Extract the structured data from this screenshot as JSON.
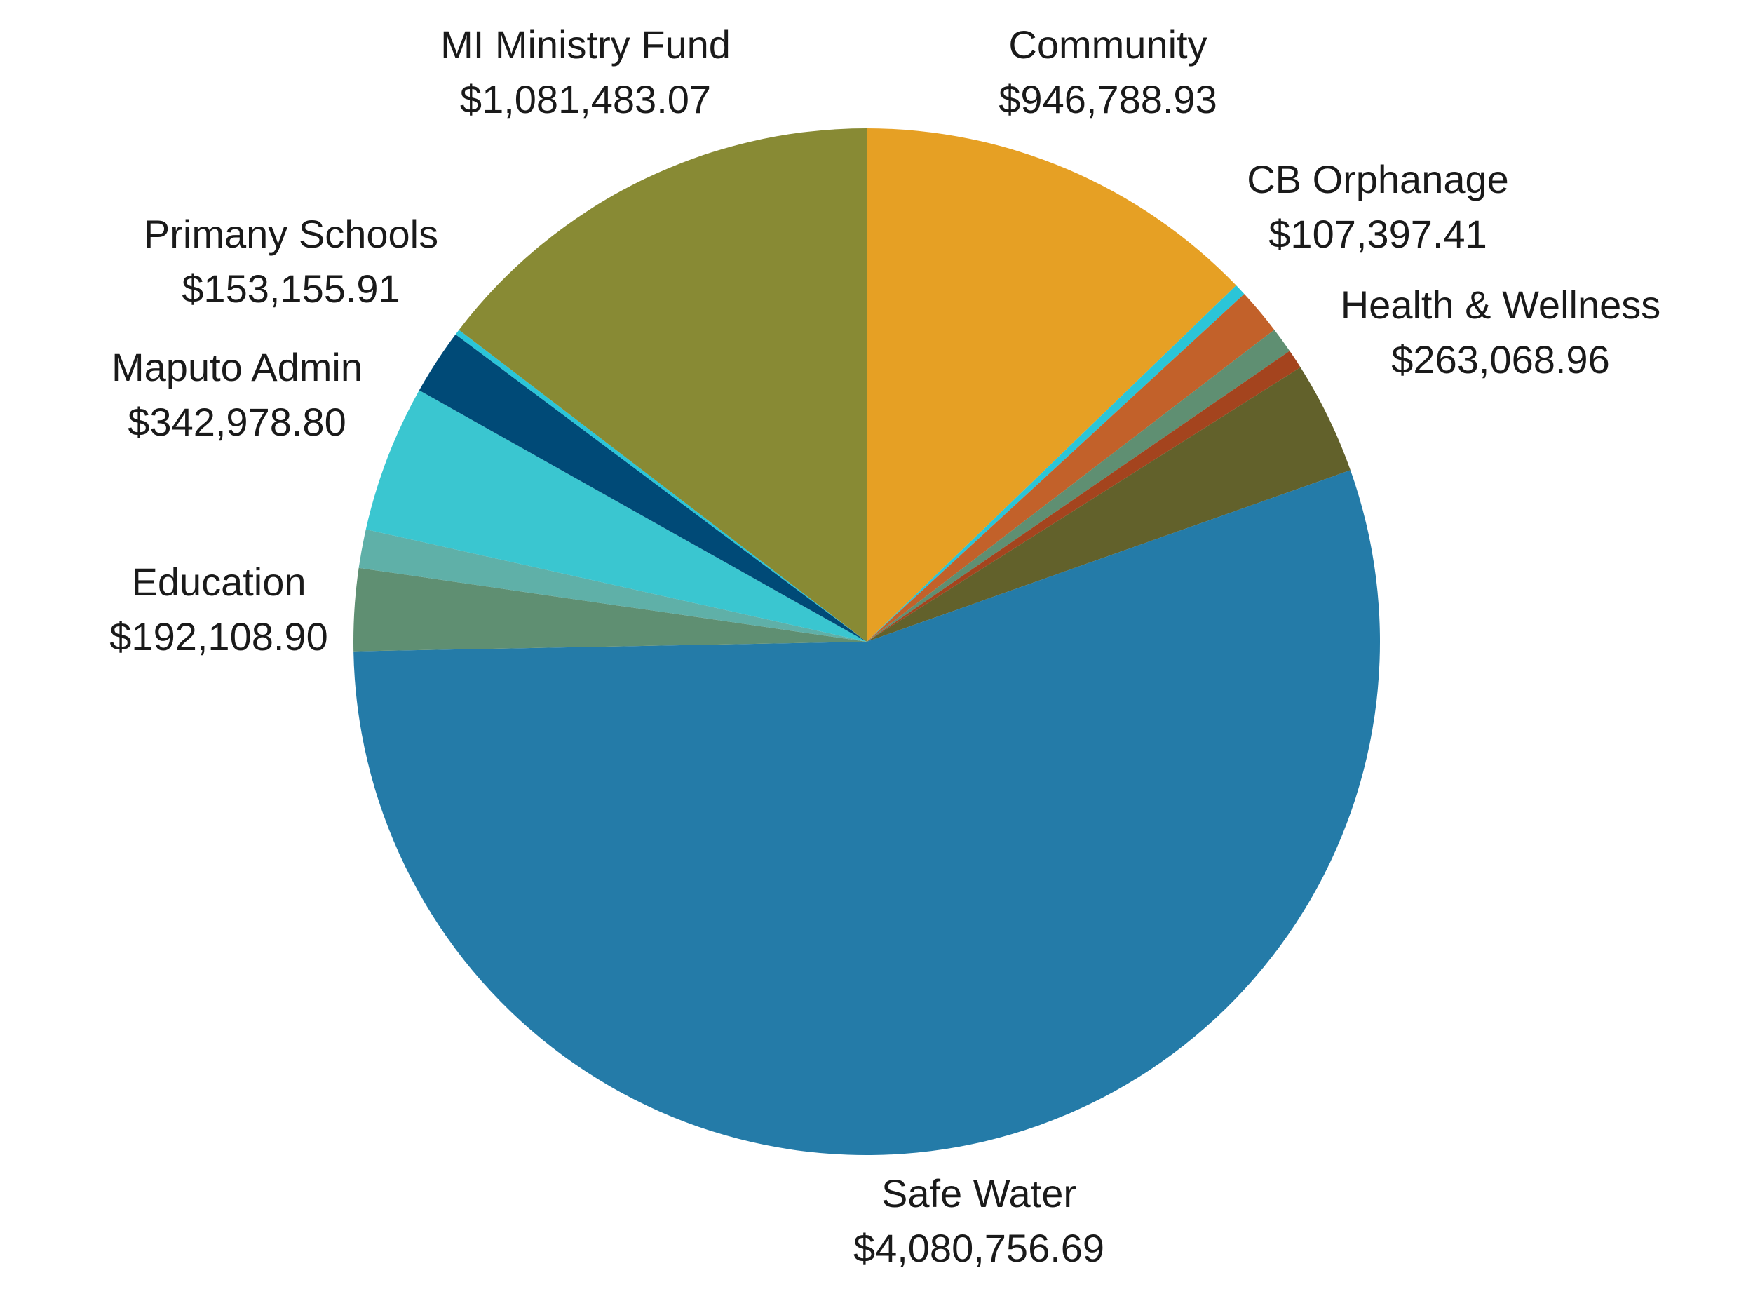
{
  "chart_data": {
    "type": "pie",
    "title": "",
    "slices": [
      {
        "key": "community",
        "label": "Community",
        "value_text": "$946,788.93",
        "value": 946788.93,
        "color": "#E6A024",
        "labeled": true
      },
      {
        "key": "small-cyan",
        "label": "",
        "value_text": "",
        "value": 27000,
        "color": "#2BC5D8",
        "labeled": false
      },
      {
        "key": "cb-orphanage",
        "label": "CB Orphanage",
        "value_text": "$107,397.41",
        "value": 107397.41,
        "color": "#C2612A",
        "labeled": true
      },
      {
        "key": "small-green",
        "label": "",
        "value_text": "",
        "value": 60000,
        "color": "#5F8F72",
        "labeled": false
      },
      {
        "key": "small-red",
        "label": "",
        "value_text": "",
        "value": 45000,
        "color": "#A4441E",
        "labeled": false
      },
      {
        "key": "health-wellness",
        "label": "Health & Wellness",
        "value_text": "$263,068.96",
        "value": 263068.96,
        "color": "#62612B",
        "labeled": true
      },
      {
        "key": "safe-water",
        "label": "Safe Water",
        "value_text": "$4,080,756.69",
        "value": 4080756.69,
        "color": "#247BA8",
        "labeled": true
      },
      {
        "key": "education",
        "label": "Education",
        "value_text": "$192,108.90",
        "value": 192108.9,
        "color": "#5F8F72",
        "labeled": true
      },
      {
        "key": "small-teal",
        "label": "",
        "value_text": "",
        "value": 90000,
        "color": "#5FB0A8",
        "labeled": false
      },
      {
        "key": "maputo-admin",
        "label": "Maputo Admin",
        "value_text": "$342,978.80",
        "value": 342978.8,
        "color": "#3AC6D0",
        "labeled": true
      },
      {
        "key": "primany-schools",
        "label": "Primany Schools",
        "value_text": "$153,155.91",
        "value": 153155.91,
        "color": "#004A77",
        "labeled": true
      },
      {
        "key": "small-cyan-2",
        "label": "",
        "value_text": "",
        "value": 13000,
        "color": "#2BC5D8",
        "labeled": false
      },
      {
        "key": "mi-ministry-fund",
        "label": "MI Ministry Fund",
        "value_text": "$1,081,483.07",
        "value": 1081483.07,
        "color": "#888A34",
        "labeled": true
      }
    ],
    "legend": "none",
    "labels": "outside"
  },
  "labels": {
    "mi_ministry_fund": {
      "name": "MI Ministry Fund",
      "value": "$1,081,483.07"
    },
    "community": {
      "name": "Community",
      "value": "$946,788.93"
    },
    "cb_orphanage": {
      "name": "CB Orphanage",
      "value": "$107,397.41"
    },
    "health_wellness": {
      "name": "Health & Wellness",
      "value": "$263,068.96"
    },
    "primany_schools": {
      "name": "Primany Schools",
      "value": "$153,155.91"
    },
    "maputo_admin": {
      "name": "Maputo Admin",
      "value": "$342,978.80"
    },
    "education": {
      "name": "Education",
      "value": "$192,108.90"
    },
    "safe_water": {
      "name": "Safe Water",
      "value": "$4,080,756.69"
    }
  }
}
